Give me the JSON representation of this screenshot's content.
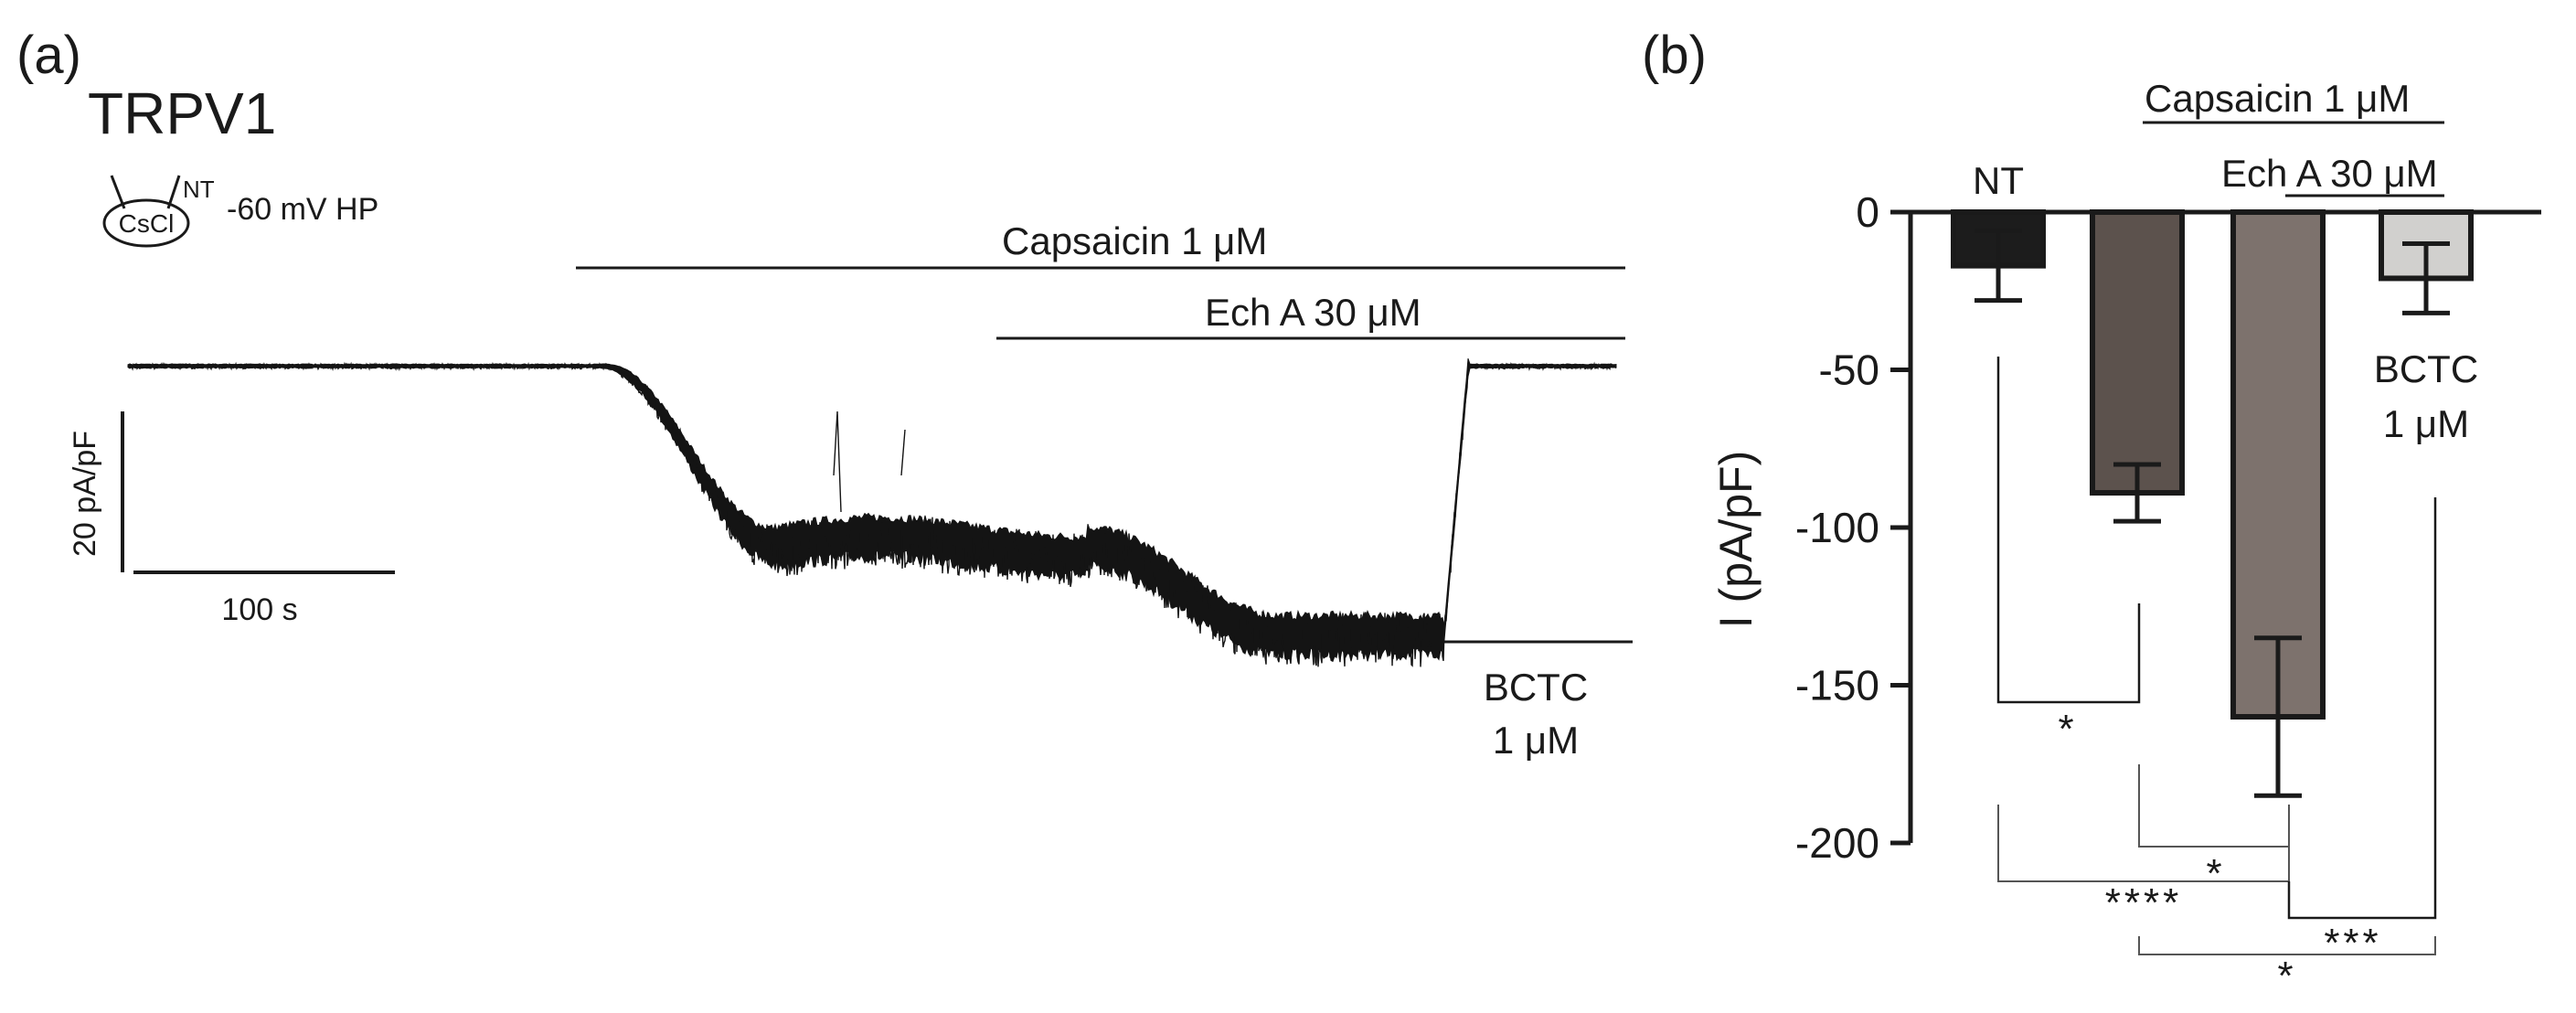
{
  "panel_a": {
    "label": "(a)",
    "title": "TRPV1",
    "pipette_label": "CsCl",
    "nt_label": "NT",
    "holding_label": "-60 mV HP",
    "capsaicin_label": "Capsaicin 1 μM",
    "echa_label": "Ech A 30 μM",
    "bctc_label_1": "BCTC",
    "bctc_label_2": "1 μM",
    "scale_y_label": "20 pA/pF",
    "scale_x_label": "100 s"
  },
  "panel_b": {
    "label": "(b)",
    "capsaicin_label": "Capsaicin 1 μM",
    "echa_label": "Ech A 30 μM",
    "nt_label": "NT",
    "bctc_label_1": "BCTC",
    "bctc_label_2": "1 μM"
  },
  "chart_data": [
    {
      "type": "line",
      "description_scope": "current trace",
      "title": "",
      "xlabel": "",
      "ylabel": "",
      "scale_bars": {
        "y": "20 pA/pF",
        "x": "100 s"
      },
      "segments": [
        {
          "condition": "baseline (NT)",
          "mean_pA_pF": 0
        },
        {
          "condition": "Capsaicin 1 μM",
          "mean_pA_pF": -22
        },
        {
          "condition": "Capsaicin 1 μM + Ech A 30 μM",
          "mean_pA_pF": -33
        },
        {
          "condition": "BCTC 1 μM",
          "mean_pA_pF": 0
        }
      ]
    },
    {
      "type": "bar",
      "title": "",
      "xlabel": "",
      "ylabel": "I (pA/pF)",
      "ylim": [
        -200,
        0
      ],
      "yticks": [
        "0",
        "-50",
        "-100",
        "-150",
        "-200"
      ],
      "categories": [
        "NT",
        "Capsaicin 1 μM",
        "Capsaicin 1 μM + Ech A 30 μM",
        "BCTC 1 μM"
      ],
      "values": [
        -17,
        -89,
        -160,
        -21
      ],
      "errors": [
        11,
        9,
        25,
        11
      ],
      "colors": [
        "#1c1c1c",
        "#5c524d",
        "#7d726d",
        "#d1d0ce"
      ],
      "significance": [
        {
          "pair": [
            0,
            1
          ],
          "label": "*"
        },
        {
          "pair": [
            1,
            2
          ],
          "label": "*"
        },
        {
          "pair": [
            0,
            2
          ],
          "label": "****"
        },
        {
          "pair": [
            2,
            3
          ],
          "label": "***"
        },
        {
          "pair": [
            1,
            3
          ],
          "label": "*"
        }
      ]
    }
  ]
}
